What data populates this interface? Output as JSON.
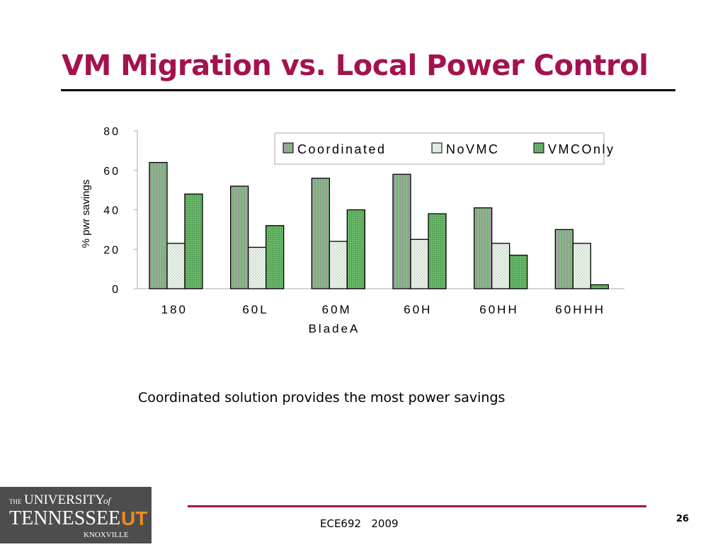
{
  "slide": {
    "title": "VM Migration vs. Local Power Control",
    "caption": "Coordinated solution provides the most power savings",
    "footer": "ECE692   2009",
    "page_number": "26",
    "logo_text": {
      "line1_small": "THE",
      "line1": "UNIVERSITY",
      "line1_of": "of",
      "line2": "TENNESSEE",
      "line2_mark": "UT",
      "line3": "KNOXVILLE"
    }
  },
  "colors": {
    "title": "#a3124e",
    "footer_rule": "#a3124e",
    "coordinated": "#7fbf7f",
    "novmc": "#eef5ee",
    "vmconly": "#6fbf6f",
    "logo_bg": "#4d4d4d",
    "logo_mark": "#f08a1c"
  },
  "chart_data": {
    "type": "bar",
    "ylabel": "% pwr savings",
    "xlabel": "BladeA",
    "ylim": [
      0,
      80
    ],
    "yticks": [
      0,
      20,
      40,
      60,
      80
    ],
    "categories": [
      "180",
      "60L",
      "60M",
      "60H",
      "60HH",
      "60HHH"
    ],
    "series": [
      {
        "name": "Coordinated",
        "values": [
          64,
          52,
          56,
          58,
          41,
          30
        ]
      },
      {
        "name": "NoVMC",
        "values": [
          23,
          21,
          24,
          25,
          23,
          23
        ]
      },
      {
        "name": "VMCOnly",
        "values": [
          48,
          32,
          40,
          38,
          17,
          2
        ]
      }
    ],
    "legend": "top-right",
    "grid": false
  }
}
